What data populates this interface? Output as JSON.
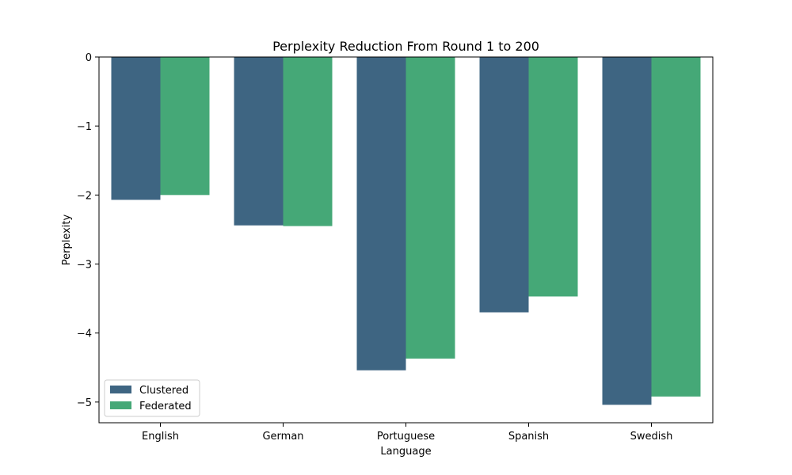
{
  "chart_data": {
    "type": "bar",
    "title": "Perplexity Reduction From Round 1 to 200",
    "xlabel": "Language",
    "ylabel": "Perplexity",
    "categories": [
      "English",
      "German",
      "Portuguese",
      "Spanish",
      "Swedish"
    ],
    "series": [
      {
        "name": "Clustered",
        "color": "#3e6582",
        "values": [
          -2.07,
          -2.44,
          -4.54,
          -3.7,
          -5.04
        ]
      },
      {
        "name": "Federated",
        "color": "#45a877",
        "values": [
          -2.0,
          -2.45,
          -4.37,
          -3.47,
          -4.92
        ]
      }
    ],
    "ylim": [
      -5.3,
      0
    ],
    "yticks": [
      0,
      -1,
      -2,
      -3,
      -4,
      -5
    ],
    "ytick_labels": [
      "0",
      "−1",
      "−2",
      "−3",
      "−4",
      "−5"
    ],
    "grid": false,
    "legend_position": "lower-left"
  }
}
